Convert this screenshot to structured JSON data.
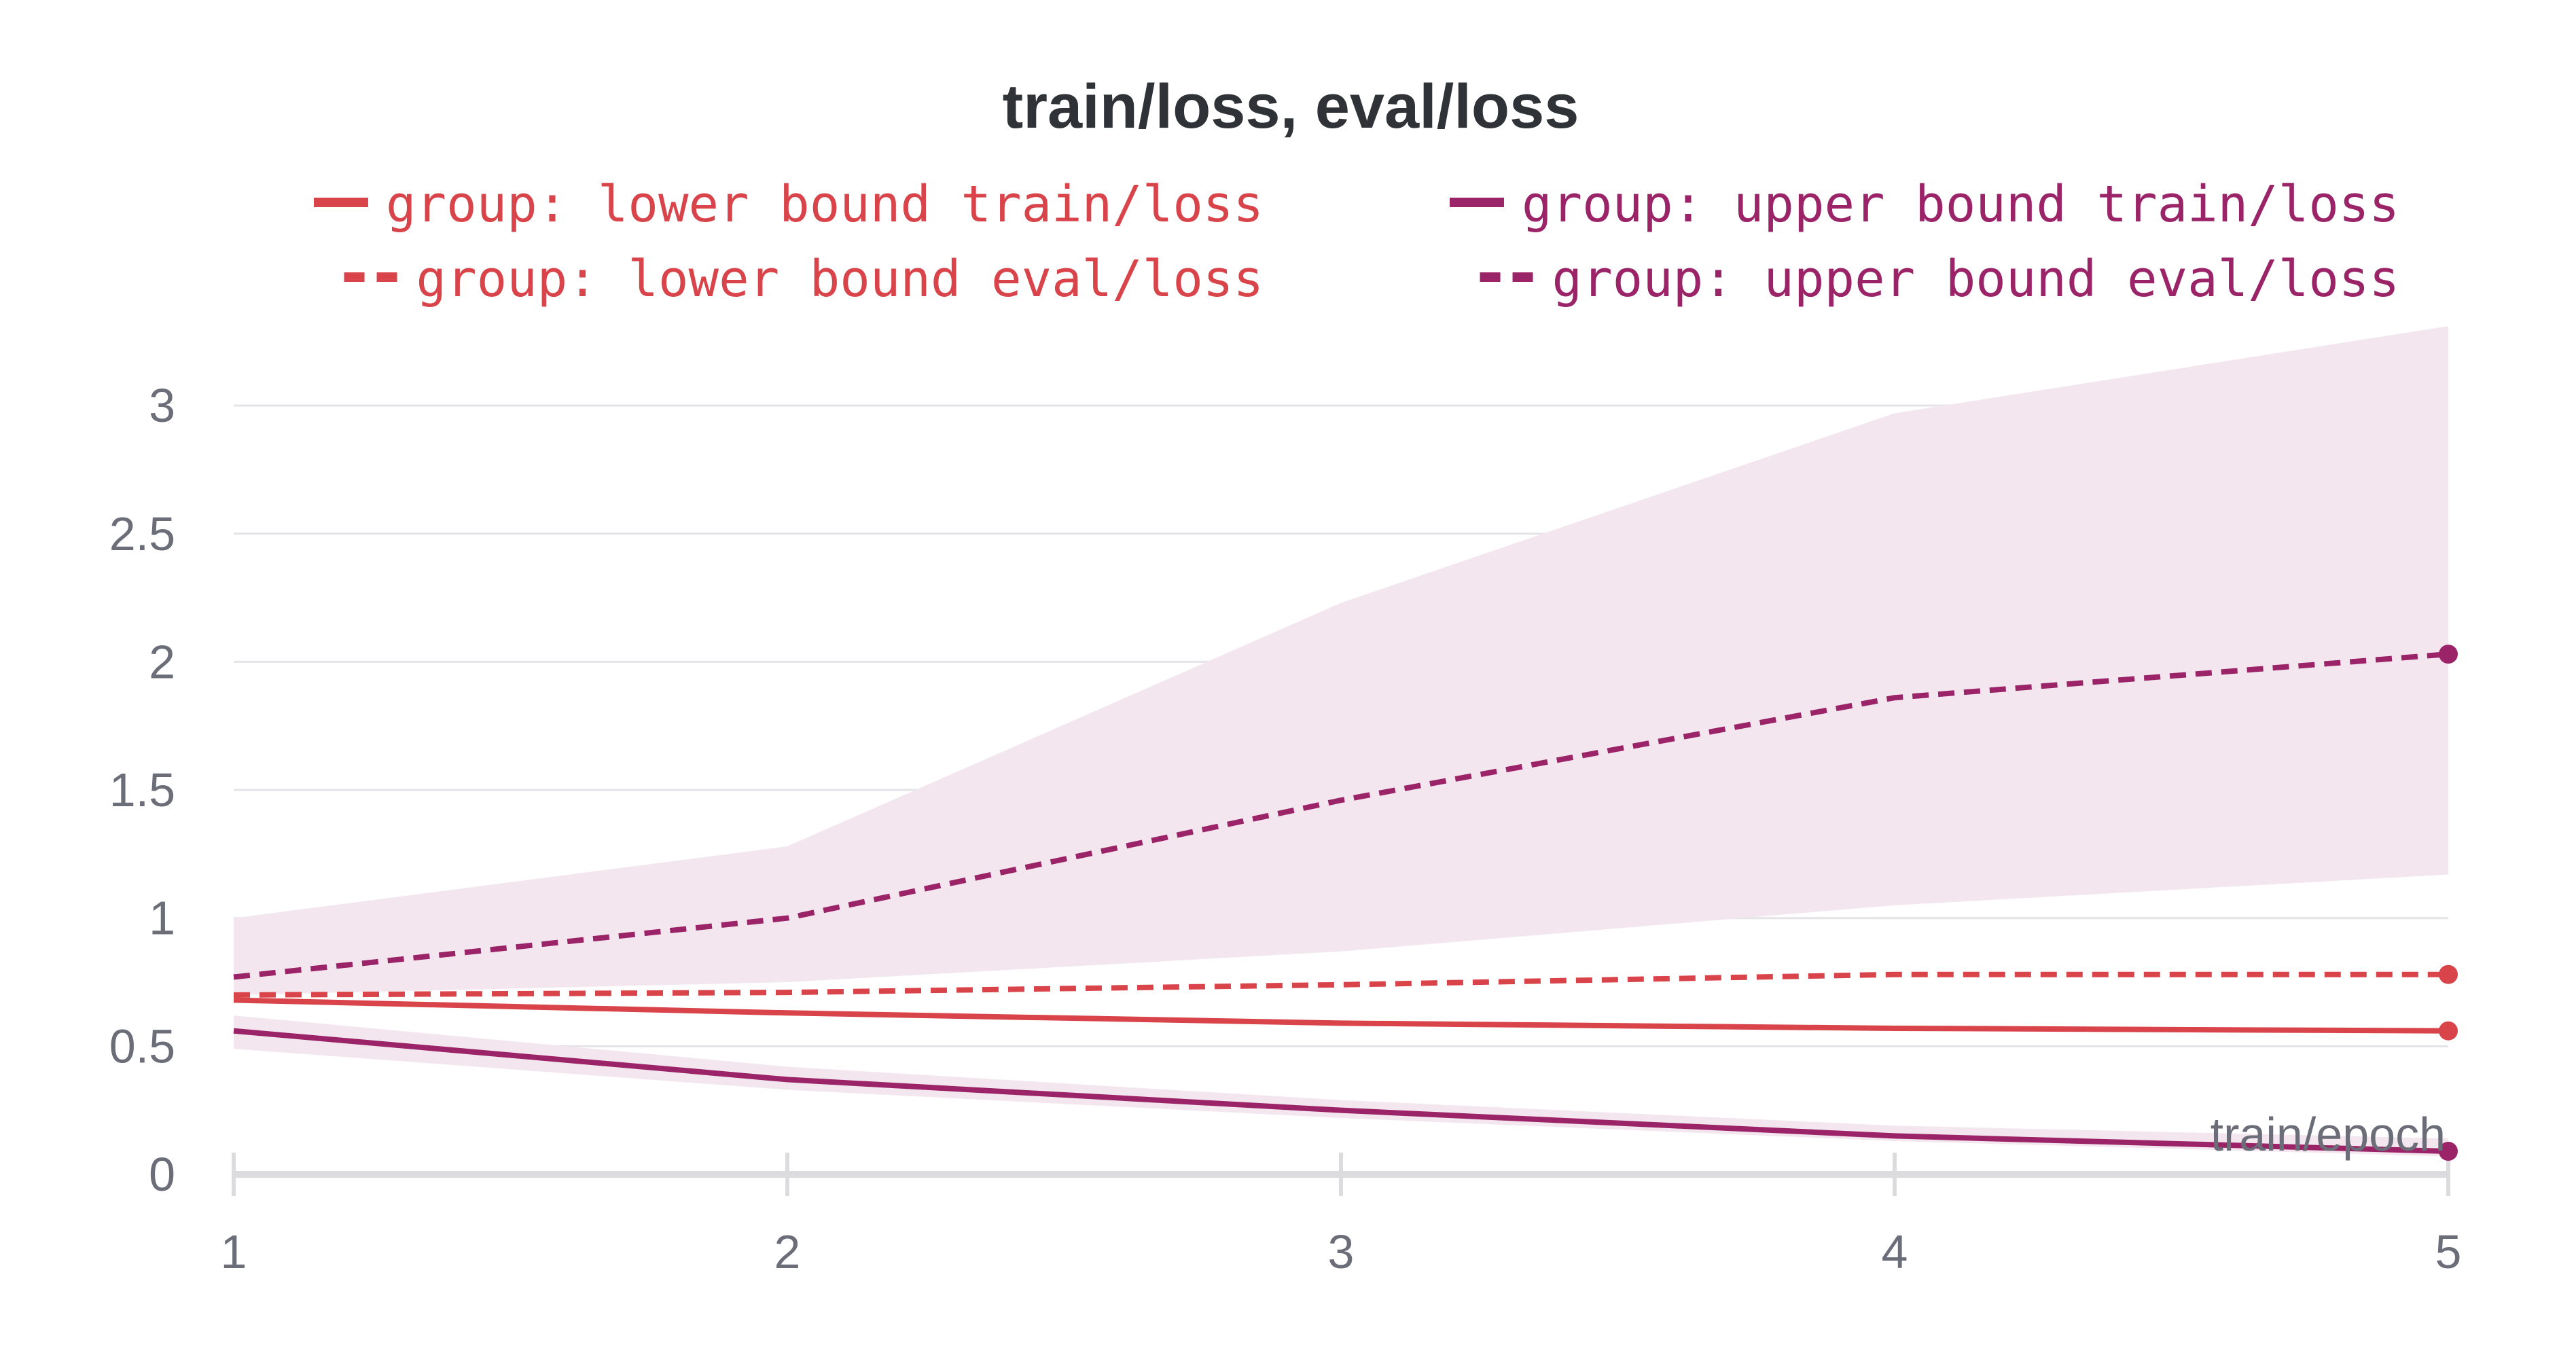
{
  "chart_data": {
    "type": "line",
    "title": "train/loss, eval/loss",
    "xlabel": "train/epoch",
    "ylabel": "",
    "x": [
      1,
      2,
      3,
      4,
      5
    ],
    "xlim": [
      1,
      5
    ],
    "ylim": [
      0,
      3.3
    ],
    "x_ticks": [
      1,
      2,
      3,
      4,
      5
    ],
    "y_ticks": [
      0,
      0.5,
      1,
      1.5,
      2,
      2.5,
      3
    ],
    "y_tick_labels": [
      "0",
      "0.5",
      "1",
      "1.5",
      "2",
      "2.5",
      "3"
    ],
    "x_tick_labels": [
      "1",
      "2",
      "3",
      "4",
      "5"
    ],
    "grid": true,
    "legend_position": "top",
    "series": [
      {
        "name": "group: lower bound train/loss",
        "values": [
          0.68,
          0.63,
          0.59,
          0.57,
          0.56
        ],
        "color": "#d9444b",
        "dash": "solid",
        "band": null
      },
      {
        "name": "group: upper bound train/loss",
        "values": [
          0.56,
          0.37,
          0.25,
          0.15,
          0.09
        ],
        "color": "#9b2468",
        "dash": "solid",
        "band": {
          "lower": [
            0.49,
            0.33,
            0.22,
            0.13,
            0.07
          ],
          "upper": [
            0.62,
            0.42,
            0.29,
            0.19,
            0.14
          ],
          "color": "#f3e6ee"
        }
      },
      {
        "name": "group: lower bound eval/loss",
        "values": [
          0.7,
          0.71,
          0.74,
          0.78,
          0.78
        ],
        "color": "#d9444b",
        "dash": "dashed",
        "band": null
      },
      {
        "name": "group: upper bound eval/loss",
        "values": [
          0.77,
          1.0,
          1.46,
          1.86,
          2.03
        ],
        "color": "#9b2468",
        "dash": "dashed",
        "band": {
          "lower": [
            0.7,
            0.75,
            0.87,
            1.05,
            1.17
          ],
          "upper": [
            1.0,
            1.28,
            2.23,
            2.97,
            3.31
          ],
          "color": "#f3e6ee"
        }
      }
    ],
    "legend_layout": [
      [
        "group: lower bound train/loss",
        "group: upper bound train/loss"
      ],
      [
        "group: lower bound eval/loss",
        "group: upper bound eval/loss"
      ]
    ]
  }
}
